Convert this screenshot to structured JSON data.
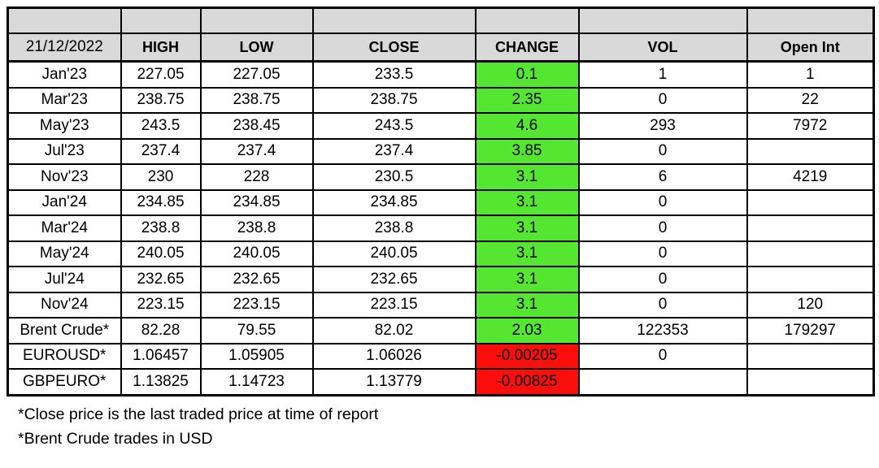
{
  "table": {
    "date_label": "21/12/2022",
    "columns": [
      "HIGH",
      "LOW",
      "CLOSE",
      "CHANGE",
      "VOL",
      "Open Int"
    ],
    "rows": [
      {
        "label": "Jan'23",
        "high": "227.05",
        "low": "227.05",
        "close": "233.5",
        "change": "0.1",
        "change_positive": true,
        "vol": "1",
        "open_int": "1"
      },
      {
        "label": "Mar'23",
        "high": "238.75",
        "low": "238.75",
        "close": "238.75",
        "change": "2.35",
        "change_positive": true,
        "vol": "0",
        "open_int": "22"
      },
      {
        "label": "May'23",
        "high": "243.5",
        "low": "238.45",
        "close": "243.5",
        "change": "4.6",
        "change_positive": true,
        "vol": "293",
        "open_int": "7972"
      },
      {
        "label": "Jul'23",
        "high": "237.4",
        "low": "237.4",
        "close": "237.4",
        "change": "3.85",
        "change_positive": true,
        "vol": "0",
        "open_int": ""
      },
      {
        "label": "Nov'23",
        "high": "230",
        "low": "228",
        "close": "230.5",
        "change": "3.1",
        "change_positive": true,
        "vol": "6",
        "open_int": "4219"
      },
      {
        "label": "Jan'24",
        "high": "234.85",
        "low": "234.85",
        "close": "234.85",
        "change": "3.1",
        "change_positive": true,
        "vol": "0",
        "open_int": ""
      },
      {
        "label": "Mar'24",
        "high": "238.8",
        "low": "238.8",
        "close": "238.8",
        "change": "3.1",
        "change_positive": true,
        "vol": "0",
        "open_int": ""
      },
      {
        "label": "May'24",
        "high": "240.05",
        "low": "240.05",
        "close": "240.05",
        "change": "3.1",
        "change_positive": true,
        "vol": "0",
        "open_int": ""
      },
      {
        "label": "Jul'24",
        "high": "232.65",
        "low": "232.65",
        "close": "232.65",
        "change": "3.1",
        "change_positive": true,
        "vol": "0",
        "open_int": ""
      },
      {
        "label": "Nov'24",
        "high": "223.15",
        "low": "223.15",
        "close": "223.15",
        "change": "3.1",
        "change_positive": true,
        "vol": "0",
        "open_int": "120"
      },
      {
        "label": "Brent Crude*",
        "high": "82.28",
        "low": "79.55",
        "close": "82.02",
        "change": "2.03",
        "change_positive": true,
        "vol": "122353",
        "open_int": "179297"
      },
      {
        "label": "EUROUSD*",
        "high": "1.06457",
        "low": "1.05905",
        "close": "1.06026",
        "change": "-0.00205",
        "change_positive": false,
        "vol": "0",
        "open_int": ""
      },
      {
        "label": "GBPEURO*",
        "high": "1.13825",
        "low": "1.14723",
        "close": "1.13779",
        "change": "-0.00825",
        "change_positive": false,
        "vol": "",
        "open_int": ""
      }
    ]
  },
  "footnotes": [
    "*Close price is the last traded price at time of report",
    "*Brent Crude trades in USD"
  ],
  "colors": {
    "positive_change_bg": "#55e632",
    "negative_change_bg": "#fb0e0c",
    "header_bg": "#d9d9d9",
    "border": "#000000"
  }
}
